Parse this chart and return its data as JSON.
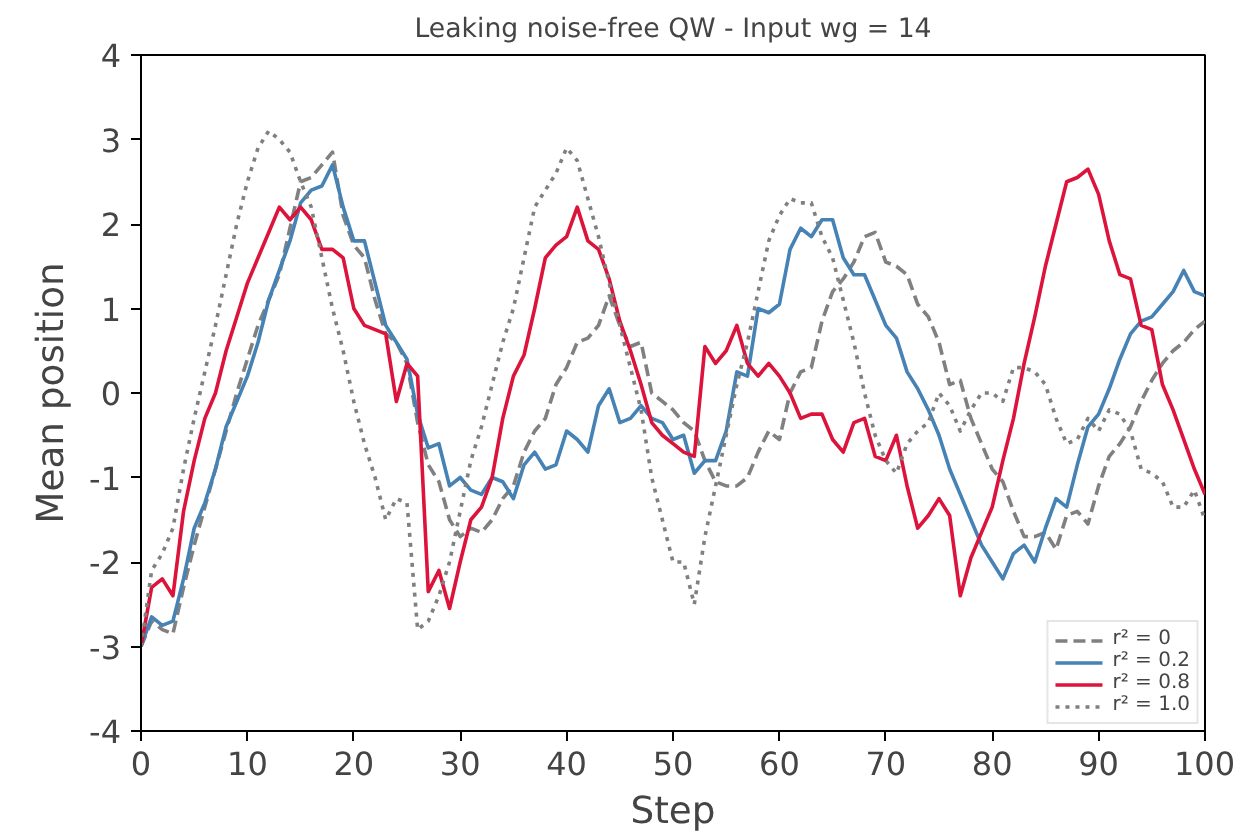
{
  "chart_data": {
    "type": "line",
    "title": "Leaking noise-free QW - Input wg = 14",
    "xlabel": "Step",
    "ylabel": "Mean position",
    "x": [
      0,
      1,
      2,
      3,
      4,
      5,
      6,
      7,
      8,
      9,
      10,
      11,
      12,
      13,
      14,
      15,
      16,
      17,
      18,
      19,
      20,
      21,
      22,
      23,
      24,
      25,
      26,
      27,
      28,
      29,
      30,
      31,
      32,
      33,
      34,
      35,
      36,
      37,
      38,
      39,
      40,
      41,
      42,
      43,
      44,
      45,
      46,
      47,
      48,
      49,
      50,
      51,
      52,
      53,
      54,
      55,
      56,
      57,
      58,
      59,
      60,
      61,
      62,
      63,
      64,
      65,
      66,
      67,
      68,
      69,
      70,
      71,
      72,
      73,
      74,
      75,
      76,
      77,
      78,
      79,
      80,
      81,
      82,
      83,
      84,
      85,
      86,
      87,
      88,
      89,
      90,
      91,
      92,
      93,
      94,
      95,
      96,
      97,
      98,
      99,
      100
    ],
    "xlim": [
      0,
      100
    ],
    "xticks": [
      0,
      10,
      20,
      30,
      40,
      50,
      60,
      70,
      80,
      90,
      100
    ],
    "ylim": [
      -4,
      4
    ],
    "yticks": [
      -4,
      -3,
      -2,
      -1,
      0,
      1,
      2,
      3,
      4
    ],
    "grid": false,
    "legend": "bottom right",
    "marker": "none",
    "series": [
      {
        "name": "r² = 0",
        "color": "#808080",
        "line_style": "dashed",
        "values": [
          -3,
          -2.7,
          -2.8,
          -2.85,
          -2.3,
          -1.8,
          -1.35,
          -0.9,
          -0.45,
          0.0,
          0.4,
          0.8,
          1.1,
          1.4,
          1.95,
          2.5,
          2.55,
          2.7,
          2.85,
          2.1,
          1.75,
          1.6,
          1.1,
          0.7,
          0.6,
          0.35,
          -0.35,
          -0.85,
          -1.05,
          -1.5,
          -1.7,
          -1.6,
          -1.65,
          -1.5,
          -1.25,
          -1.1,
          -0.7,
          -0.45,
          -0.3,
          0.1,
          0.3,
          0.6,
          0.65,
          0.8,
          1.15,
          0.8,
          0.55,
          0.6,
          0.0,
          -0.1,
          -0.2,
          -0.35,
          -0.45,
          -0.8,
          -1.05,
          -1.1,
          -1.1,
          -1.0,
          -0.7,
          -0.45,
          -0.55,
          0.0,
          0.25,
          0.3,
          0.85,
          1.2,
          1.35,
          1.55,
          1.85,
          1.9,
          1.55,
          1.5,
          1.4,
          1.05,
          0.9,
          0.6,
          0.1,
          0.15,
          -0.3,
          -0.6,
          -0.9,
          -1.05,
          -1.4,
          -1.7,
          -1.7,
          -1.65,
          -1.85,
          -1.45,
          -1.4,
          -1.55,
          -1.1,
          -0.75,
          -0.6,
          -0.4,
          -0.1,
          0.15,
          0.35,
          0.5,
          0.6,
          0.75,
          0.85
        ]
      },
      {
        "name": "r² = 0.2",
        "color": "#4682b4",
        "line_style": "solid",
        "values": [
          -3,
          -2.65,
          -2.75,
          -2.7,
          -2.2,
          -1.6,
          -1.3,
          -0.9,
          -0.4,
          -0.1,
          0.2,
          0.6,
          1.1,
          1.45,
          1.8,
          2.25,
          2.4,
          2.45,
          2.7,
          2.2,
          1.8,
          1.8,
          1.3,
          0.8,
          0.6,
          0.4,
          -0.25,
          -0.65,
          -0.6,
          -1.1,
          -1.0,
          -1.15,
          -1.2,
          -1.0,
          -1.05,
          -1.25,
          -0.85,
          -0.7,
          -0.9,
          -0.85,
          -0.45,
          -0.55,
          -0.7,
          -0.15,
          0.05,
          -0.35,
          -0.3,
          -0.15,
          -0.3,
          -0.35,
          -0.55,
          -0.5,
          -0.95,
          -0.8,
          -0.8,
          -0.45,
          0.25,
          0.2,
          1.0,
          0.95,
          1.05,
          1.7,
          1.95,
          1.85,
          2.05,
          2.05,
          1.6,
          1.4,
          1.4,
          1.1,
          0.8,
          0.65,
          0.25,
          0.05,
          -0.2,
          -0.5,
          -0.9,
          -1.2,
          -1.5,
          -1.8,
          -2.0,
          -2.2,
          -1.9,
          -1.8,
          -2.0,
          -1.6,
          -1.25,
          -1.35,
          -0.85,
          -0.4,
          -0.25,
          0.05,
          0.4,
          0.7,
          0.85,
          0.9,
          1.05,
          1.2,
          1.45,
          1.2,
          1.15
        ]
      },
      {
        "name": "r² = 0.8",
        "color": "#dc143c",
        "line_style": "solid",
        "values": [
          -3,
          -2.3,
          -2.2,
          -2.4,
          -1.4,
          -0.8,
          -0.3,
          0.0,
          0.5,
          0.9,
          1.3,
          1.6,
          1.9,
          2.2,
          2.05,
          2.2,
          2.05,
          1.7,
          1.7,
          1.6,
          1.0,
          0.8,
          0.75,
          0.7,
          -0.1,
          0.35,
          0.2,
          -2.35,
          -2.1,
          -2.55,
          -2.0,
          -1.5,
          -1.35,
          -1.0,
          -0.3,
          0.2,
          0.45,
          1.0,
          1.6,
          1.75,
          1.85,
          2.2,
          1.8,
          1.7,
          1.35,
          0.85,
          0.5,
          0.1,
          -0.35,
          -0.5,
          -0.6,
          -0.7,
          -0.75,
          0.55,
          0.35,
          0.5,
          0.8,
          0.35,
          0.2,
          0.35,
          0.2,
          0.0,
          -0.3,
          -0.25,
          -0.25,
          -0.55,
          -0.7,
          -0.35,
          -0.3,
          -0.75,
          -0.8,
          -0.5,
          -1.1,
          -1.6,
          -1.45,
          -1.25,
          -1.45,
          -2.4,
          -1.95,
          -1.65,
          -1.35,
          -0.8,
          -0.3,
          0.35,
          0.9,
          1.5,
          2.0,
          2.5,
          2.55,
          2.65,
          2.35,
          1.8,
          1.4,
          1.35,
          0.8,
          0.75,
          0.1,
          -0.2,
          -0.55,
          -0.9,
          -1.2
        ]
      },
      {
        "name": "r² = 1.0",
        "color": "#808080",
        "line_style": "dotted",
        "values": [
          -3,
          -2.1,
          -1.9,
          -1.6,
          -0.9,
          -0.3,
          0.25,
          0.8,
          1.4,
          2.0,
          2.5,
          2.9,
          3.1,
          3.0,
          2.85,
          2.5,
          2.2,
          1.6,
          1.0,
          0.5,
          -0.1,
          -0.6,
          -1.0,
          -1.5,
          -1.25,
          -1.3,
          -2.8,
          -2.7,
          -2.4,
          -2.0,
          -1.4,
          -0.8,
          -0.4,
          0.1,
          0.6,
          1.0,
          1.6,
          2.2,
          2.4,
          2.6,
          2.9,
          2.75,
          2.3,
          1.85,
          1.3,
          0.8,
          0.3,
          -0.2,
          -1.0,
          -1.5,
          -2.0,
          -2.0,
          -2.5,
          -1.7,
          -1.1,
          -0.5,
          0.1,
          0.6,
          1.2,
          1.8,
          2.1,
          2.3,
          2.25,
          2.25,
          1.85,
          1.6,
          1.1,
          0.6,
          0.0,
          -0.5,
          -0.8,
          -0.95,
          -0.6,
          -0.45,
          -0.35,
          0.0,
          -0.15,
          -0.45,
          -0.2,
          0.0,
          0.0,
          -0.1,
          0.3,
          0.3,
          0.25,
          0.1,
          -0.3,
          -0.6,
          -0.55,
          -0.3,
          -0.45,
          -0.2,
          -0.25,
          -0.45,
          -0.9,
          -0.95,
          -1.05,
          -1.35,
          -1.35,
          -1.15,
          -1.5
        ]
      }
    ]
  }
}
